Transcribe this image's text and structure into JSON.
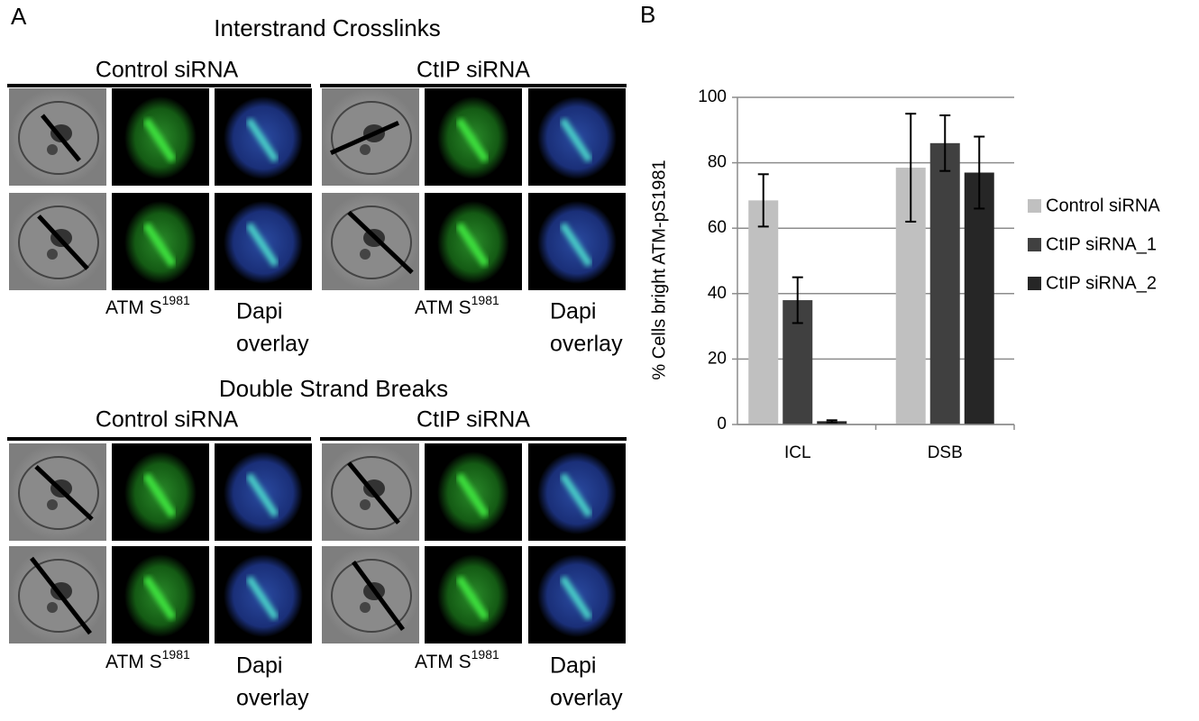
{
  "panel_a": {
    "label": "A",
    "atm_label": "ATM S",
    "atm_sup": "1981",
    "dapi_lines": [
      "Dapi",
      "overlay"
    ],
    "sections": [
      {
        "title": "Interstrand Crosslinks",
        "groups": [
          "Control siRNA",
          "CtIP siRNA"
        ]
      },
      {
        "title": "Double Strand Breaks",
        "groups": [
          "Control siRNA",
          "CtIP siRNA"
        ]
      }
    ]
  },
  "chart_data": {
    "type": "bar",
    "panel_label": "B",
    "y_label": "% Cells bright  ATM-pS1981",
    "categories": [
      "ICL",
      "DSB"
    ],
    "series": [
      {
        "name": "Control siRNA",
        "color": "#c0c0c0",
        "values": [
          68.5,
          78.5
        ],
        "errors": [
          8,
          16.5
        ]
      },
      {
        "name": "CtIP siRNA_1",
        "color": "#404040",
        "values": [
          38,
          86
        ],
        "errors": [
          7,
          8.5
        ]
      },
      {
        "name": "CtIP siRNA_2",
        "color": "#262626",
        "values": [
          1,
          77
        ],
        "errors": [
          0.3,
          11
        ]
      }
    ],
    "ylim": [
      0,
      100
    ],
    "yticks": [
      0,
      20,
      40,
      60,
      80,
      100
    ],
    "grid": true,
    "legend": "right"
  }
}
